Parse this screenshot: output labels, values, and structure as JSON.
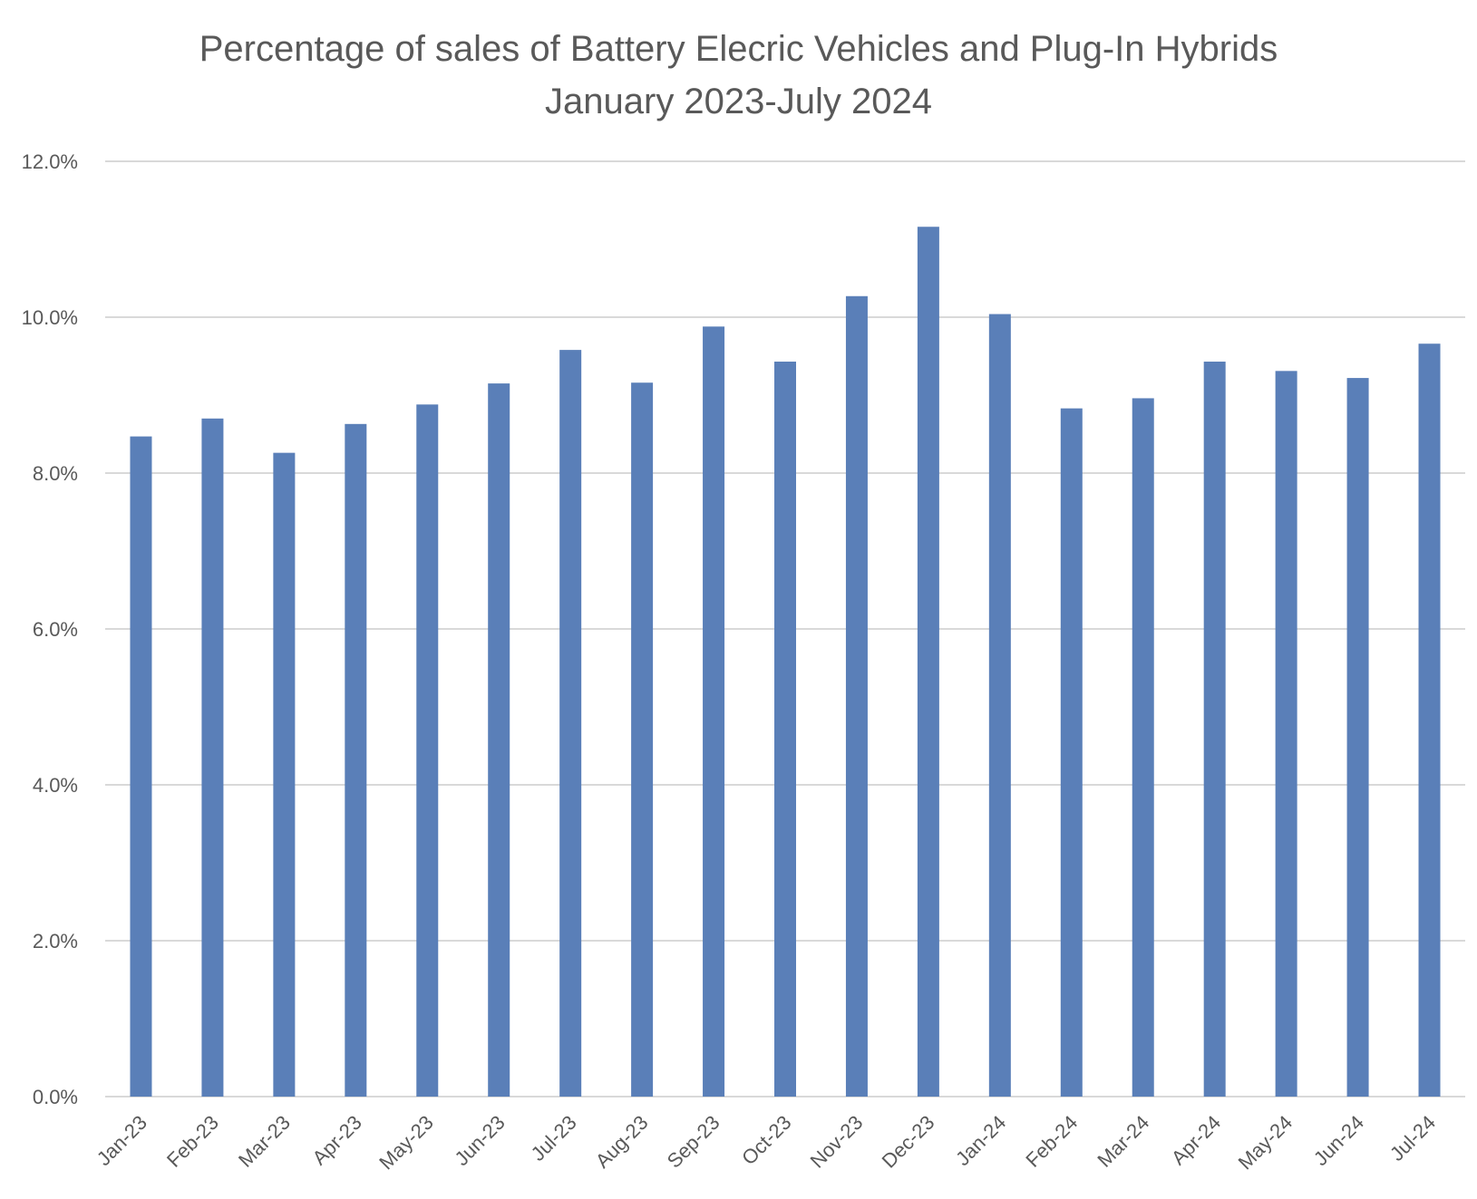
{
  "chart_data": {
    "type": "bar",
    "title_lines": [
      "Percentage of sales of Battery Elecric Vehicles and Plug-In Hybrids",
      "January 2023-July 2024"
    ],
    "categories": [
      "Jan-23",
      "Feb-23",
      "Mar-23",
      "Apr-23",
      "May-23",
      "Jun-23",
      "Jul-23",
      "Aug-23",
      "Sep-23",
      "Oct-23",
      "Nov-23",
      "Dec-23",
      "Jan-24",
      "Feb-24",
      "Mar-24",
      "Apr-24",
      "May-24",
      "Jun-24",
      "Jul-24"
    ],
    "values": [
      8.47,
      8.7,
      8.26,
      8.63,
      8.88,
      9.15,
      9.58,
      9.16,
      9.88,
      9.43,
      10.27,
      11.16,
      10.04,
      8.83,
      8.96,
      9.43,
      9.31,
      9.22,
      9.66
    ],
    "ylim": [
      0,
      12
    ],
    "y_ticks": [
      0,
      2,
      4,
      6,
      8,
      10,
      12
    ],
    "y_tick_labels": [
      "0.0%",
      "2.0%",
      "4.0%",
      "6.0%",
      "8.0%",
      "10.0%",
      "12.0%"
    ],
    "xlabel": "",
    "ylabel": "",
    "grid": true,
    "legend": "none",
    "colors": {
      "bar": "#5a7fb8",
      "grid": "#d9d9d9",
      "text": "#595959"
    }
  }
}
